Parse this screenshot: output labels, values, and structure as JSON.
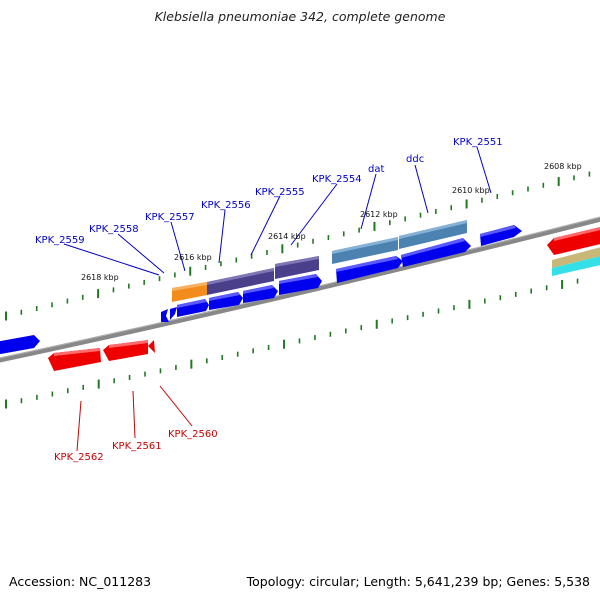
{
  "title": "Klebsiella pneumoniae 342, complete genome",
  "accession": "Accession: NC_011283",
  "summary": "Topology: circular; Length: 5,641,239 bp; Genes: 5,538",
  "colors": {
    "backbone": "#888888",
    "tick": "#1f7a1f",
    "forward_gene": "#0000ee",
    "reverse_gene": "#ee0000",
    "forward_label": "#0000cc",
    "reverse_label": "#cc0000",
    "cds_orange": "#f28c1c",
    "cds_purple": "#4a3f8a",
    "cds_steelblue": "#4b82b0",
    "tan_band": "#c8b878",
    "cyan_band": "#33e0e8"
  },
  "kbp_labels": [
    "2618 kbp",
    "2616 kbp",
    "2614 kbp",
    "2612 kbp",
    "2610 kbp",
    "2608 kbp"
  ],
  "forward_gene_labels": [
    "KPK_2559",
    "KPK_2558",
    "KPK_2557",
    "KPK_2556",
    "KPK_2555",
    "KPK_2554",
    "dat",
    "ddc",
    "KPK_2551"
  ],
  "reverse_gene_labels": [
    "KPK_2562",
    "KPK_2561",
    "KPK_2560"
  ]
}
